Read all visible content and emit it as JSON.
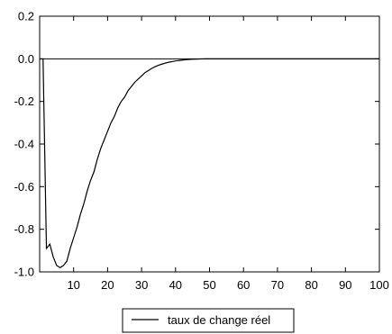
{
  "chart_data": {
    "type": "line",
    "title": "",
    "xlabel": "",
    "ylabel": "",
    "xlim": [
      0,
      100
    ],
    "ylim": [
      -1.0,
      0.2
    ],
    "x_ticks": [
      10,
      20,
      30,
      40,
      50,
      60,
      70,
      80,
      90,
      100
    ],
    "y_ticks": [
      0.2,
      0.0,
      -0.2,
      -0.4,
      -0.6,
      -0.8,
      -1.0
    ],
    "x_tick_labels": [
      "10",
      "20",
      "30",
      "40",
      "50",
      "60",
      "70",
      "80",
      "90",
      "100"
    ],
    "y_tick_labels": [
      "0.2",
      "0.0",
      "-0.2",
      "-0.4",
      "-0.6",
      "-0.8",
      "-1.0"
    ],
    "grid": false,
    "zero_line": true,
    "legend": {
      "placement": "bottom-center",
      "entries": [
        "taux de change réel"
      ]
    },
    "series": [
      {
        "name": "taux de change réel",
        "color": "#000000",
        "x": [
          1,
          2,
          3,
          4,
          5,
          6,
          7,
          8,
          9,
          10,
          11,
          12,
          13,
          14,
          15,
          16,
          17,
          18,
          19,
          20,
          21,
          22,
          23,
          24,
          25,
          26,
          27,
          28,
          29,
          30,
          31,
          32,
          33,
          34,
          35,
          36,
          37,
          38,
          39,
          40,
          41,
          42,
          43,
          44,
          45,
          46,
          47,
          48,
          49,
          50,
          60,
          70,
          80,
          90,
          100
        ],
        "values": [
          0.0,
          -0.89,
          -0.87,
          -0.93,
          -0.97,
          -0.98,
          -0.97,
          -0.95,
          -0.89,
          -0.84,
          -0.79,
          -0.73,
          -0.68,
          -0.62,
          -0.57,
          -0.53,
          -0.47,
          -0.42,
          -0.38,
          -0.34,
          -0.3,
          -0.27,
          -0.23,
          -0.2,
          -0.18,
          -0.15,
          -0.13,
          -0.11,
          -0.095,
          -0.08,
          -0.065,
          -0.055,
          -0.045,
          -0.037,
          -0.03,
          -0.025,
          -0.02,
          -0.016,
          -0.013,
          -0.01,
          -0.008,
          -0.006,
          -0.004,
          -0.003,
          -0.002,
          -0.0015,
          -0.001,
          -0.0005,
          -0.0002,
          0.0,
          0.0,
          0.0,
          0.0,
          0.0,
          0.0
        ]
      }
    ]
  }
}
